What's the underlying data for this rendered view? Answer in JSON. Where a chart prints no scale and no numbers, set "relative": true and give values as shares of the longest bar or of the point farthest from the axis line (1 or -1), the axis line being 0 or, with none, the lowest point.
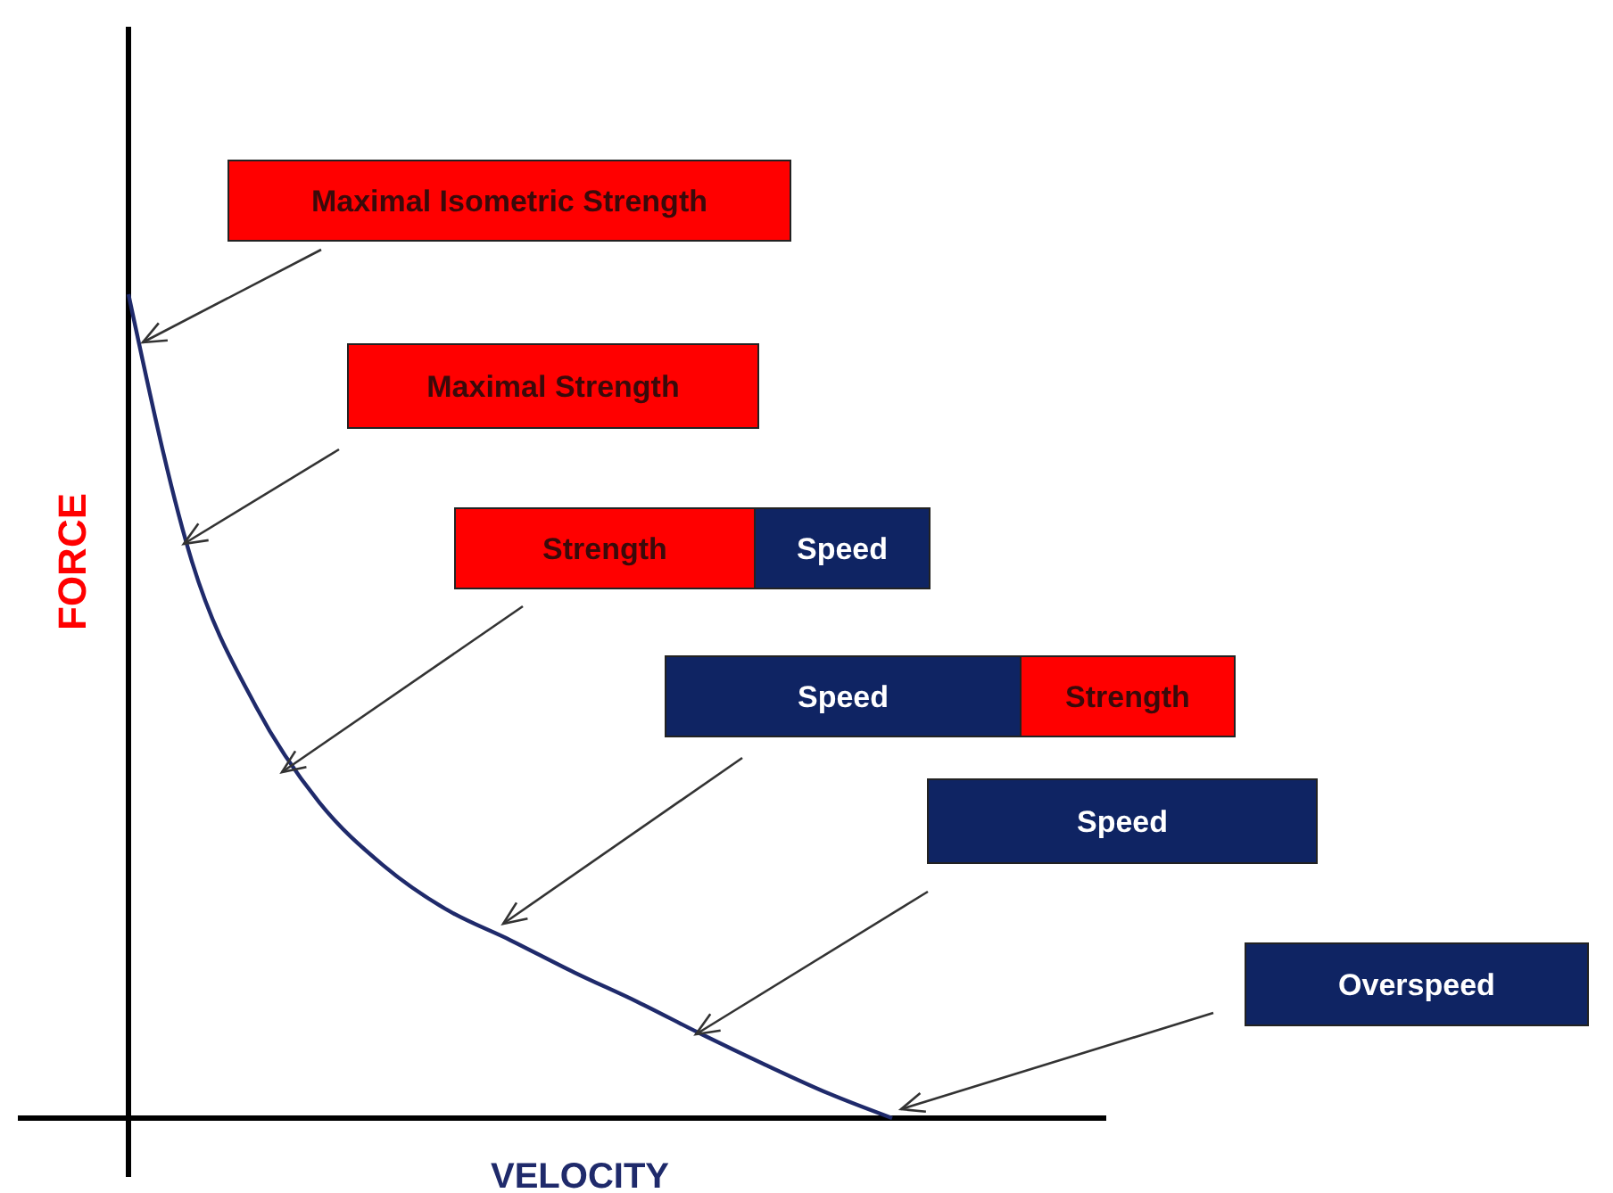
{
  "chart_data": {
    "type": "line",
    "relative": true,
    "xlabel": "VELOCITY",
    "ylabel": "FORCE",
    "categories": [
      null,
      null,
      null,
      null,
      null,
      null,
      null,
      null,
      null,
      null,
      null,
      null,
      null
    ],
    "series": [
      {
        "color": "#1f2a6b",
        "values": [
          1,
          0.675,
          0.5,
          0.383,
          0.307,
          0.253,
          0.216,
          0.177,
          0.141,
          0.102,
          0.065,
          0.03,
          0
        ]
      }
    ],
    "annotations": [
      "Maximal Isometric Strength",
      "Maximal Strength",
      "Strength",
      "Speed",
      "Speed",
      "Strength",
      "Speed",
      "Overspeed"
    ]
  }
}
